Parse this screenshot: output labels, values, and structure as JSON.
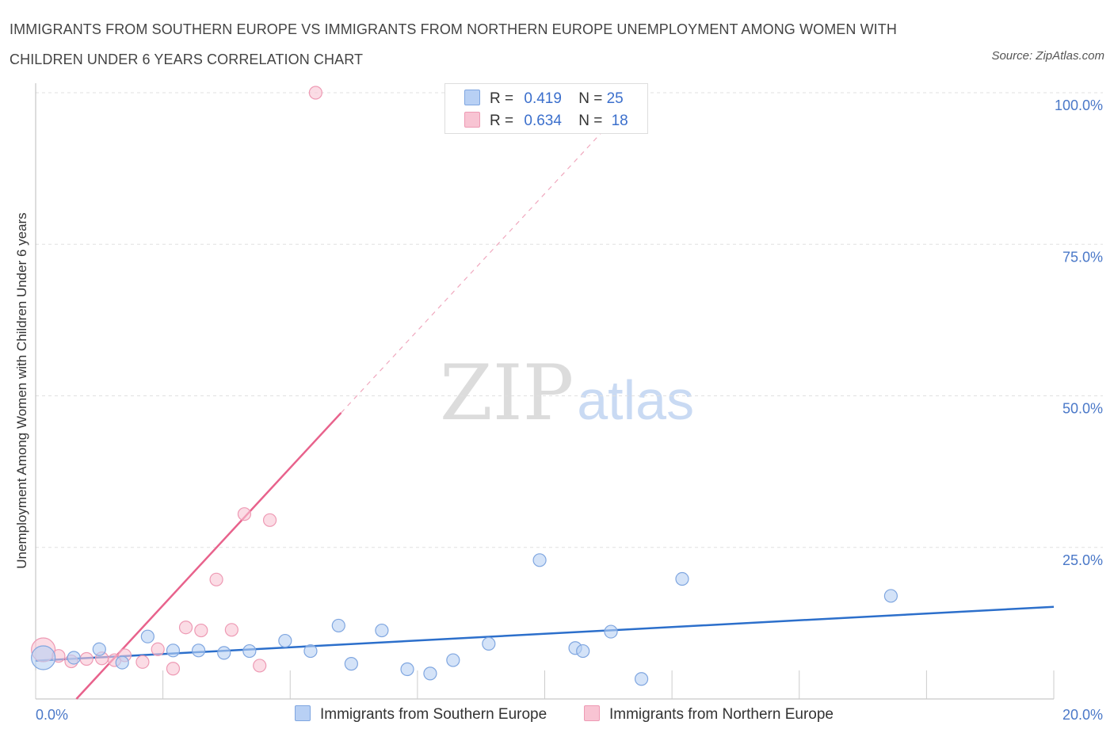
{
  "title": "IMMIGRANTS FROM SOUTHERN EUROPE VS IMMIGRANTS FROM NORTHERN EUROPE UNEMPLOYMENT AMONG WOMEN WITH CHILDREN UNDER 6 YEARS CORRELATION CHART",
  "source": "Source: ZipAtlas.com",
  "watermark": {
    "zip": "ZIP",
    "atlas": "atlas"
  },
  "legend": {
    "r_label": "R =",
    "n_label": "N =",
    "series": [
      {
        "name": "Immigrants from Southern Europe",
        "r": "0.419",
        "n": "25"
      },
      {
        "name": "Immigrants from Northern Europe",
        "r": "0.634",
        "n": "18"
      }
    ]
  },
  "colors": {
    "blue_fill": "#b8d0f4",
    "blue_stroke": "#7fa6e0",
    "blue_line": "#2c6fcb",
    "pink_fill": "#f8c4d3",
    "pink_stroke": "#ee9ab4",
    "pink_line": "#e8628c",
    "grid": "#e0e0e0",
    "tick_text": "#4a78c8"
  },
  "chart_data": {
    "type": "scatter",
    "title": "IMMIGRANTS FROM SOUTHERN EUROPE VS IMMIGRANTS FROM NORTHERN EUROPE UNEMPLOYMENT AMONG WOMEN WITH CHILDREN UNDER 6 YEARS CORRELATION CHART",
    "xlabel": "",
    "ylabel": "Unemployment Among Women with Children Under 6 years",
    "xlim": [
      0,
      20
    ],
    "ylim": [
      0,
      100
    ],
    "x_tick_labels": [
      "0.0%",
      "20.0%"
    ],
    "y_ticks": [
      25,
      50,
      75,
      100
    ],
    "y_tick_labels": [
      "25.0%",
      "50.0%",
      "75.0%",
      "100.0%"
    ],
    "series": [
      {
        "name": "Immigrants from Southern Europe",
        "color": "blue",
        "points": [
          {
            "x": 0.15,
            "y": 6.8,
            "big": true
          },
          {
            "x": 0.75,
            "y": 6.8
          },
          {
            "x": 1.25,
            "y": 8.2
          },
          {
            "x": 1.7,
            "y": 6.0
          },
          {
            "x": 2.2,
            "y": 10.3
          },
          {
            "x": 2.7,
            "y": 8.0
          },
          {
            "x": 3.2,
            "y": 8.0
          },
          {
            "x": 3.7,
            "y": 7.6
          },
          {
            "x": 4.2,
            "y": 7.9
          },
          {
            "x": 4.9,
            "y": 9.6
          },
          {
            "x": 5.4,
            "y": 7.9
          },
          {
            "x": 5.95,
            "y": 12.1
          },
          {
            "x": 6.2,
            "y": 5.8
          },
          {
            "x": 6.8,
            "y": 11.3
          },
          {
            "x": 7.3,
            "y": 4.9
          },
          {
            "x": 7.75,
            "y": 4.2
          },
          {
            "x": 8.2,
            "y": 6.4
          },
          {
            "x": 8.9,
            "y": 9.1
          },
          {
            "x": 9.9,
            "y": 22.9
          },
          {
            "x": 10.6,
            "y": 8.4
          },
          {
            "x": 10.75,
            "y": 7.9
          },
          {
            "x": 11.3,
            "y": 11.1
          },
          {
            "x": 11.9,
            "y": 3.3
          },
          {
            "x": 12.7,
            "y": 19.8
          },
          {
            "x": 16.8,
            "y": 17.0
          }
        ],
        "trend": {
          "x": [
            0,
            20
          ],
          "y": [
            6.3,
            15.2
          ],
          "style": "solid"
        }
      },
      {
        "name": "Immigrants from Northern Europe",
        "color": "pink",
        "points": [
          {
            "x": 0.15,
            "y": 8.1,
            "big": true
          },
          {
            "x": 0.45,
            "y": 7.1
          },
          {
            "x": 0.7,
            "y": 6.2
          },
          {
            "x": 1.0,
            "y": 6.6
          },
          {
            "x": 1.3,
            "y": 6.7
          },
          {
            "x": 1.55,
            "y": 6.4
          },
          {
            "x": 1.75,
            "y": 7.2
          },
          {
            "x": 2.1,
            "y": 6.1
          },
          {
            "x": 2.4,
            "y": 8.2
          },
          {
            "x": 2.7,
            "y": 5.0
          },
          {
            "x": 2.95,
            "y": 11.8
          },
          {
            "x": 3.25,
            "y": 11.3
          },
          {
            "x": 3.55,
            "y": 19.7
          },
          {
            "x": 3.85,
            "y": 11.4
          },
          {
            "x": 4.1,
            "y": 30.5
          },
          {
            "x": 4.4,
            "y": 5.5
          },
          {
            "x": 4.6,
            "y": 29.5
          },
          {
            "x": 5.5,
            "y": 100.0
          }
        ],
        "trend": {
          "x": [
            0.8,
            6.0
          ],
          "y": [
            0,
            47.2
          ],
          "style": "solid",
          "extension": {
            "x": [
              6.0,
              11.4
            ],
            "y": [
              47.2,
              96.0
            ],
            "style": "dashed"
          }
        }
      }
    ]
  }
}
